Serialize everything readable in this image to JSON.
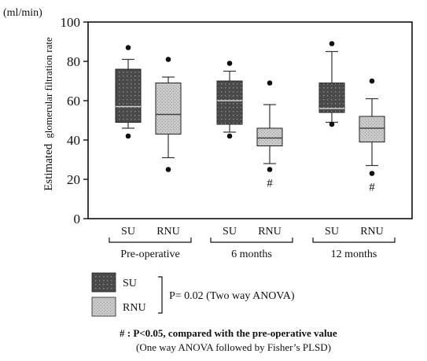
{
  "chart_data": {
    "type": "box",
    "y_unit": "(ml/min)",
    "ylabel_prefix": "Estimated",
    "ylabel_main": "glomerular filtration rate",
    "ylim": [
      0,
      100
    ],
    "yticks": [
      0,
      20,
      40,
      60,
      80,
      100
    ],
    "grid": false,
    "groups": [
      {
        "label": "Pre-operative",
        "categories": [
          "SU",
          "RNU"
        ]
      },
      {
        "label": "6 months",
        "categories": [
          "SU",
          "RNU"
        ]
      },
      {
        "label": "12 months",
        "categories": [
          "SU",
          "RNU"
        ]
      }
    ],
    "series": [
      {
        "name": "SU",
        "boxes": [
          {
            "whisker_low": 46,
            "q1": 49,
            "median": 57,
            "q3": 76,
            "whisker_high": 81,
            "outliers": [
              87,
              42
            ]
          },
          {
            "whisker_low": 44,
            "q1": 48,
            "median": 60,
            "q3": 70,
            "whisker_high": 75,
            "outliers": [
              79,
              42
            ]
          },
          {
            "whisker_low": 49,
            "q1": 54,
            "median": 56,
            "q3": 69,
            "whisker_high": 85,
            "outliers": [
              89,
              48
            ]
          }
        ]
      },
      {
        "name": "RNU",
        "boxes": [
          {
            "whisker_low": 31,
            "q1": 43,
            "median": 53,
            "q3": 69,
            "whisker_high": 72,
            "outliers": [
              81,
              25
            ]
          },
          {
            "whisker_low": 28,
            "q1": 37,
            "median": 41,
            "q3": 46,
            "whisker_high": 58,
            "outliers": [
              69,
              25
            ],
            "marker": "#"
          },
          {
            "whisker_low": 27,
            "q1": 39,
            "median": 46,
            "q3": 52,
            "whisker_high": 61,
            "outliers": [
              70,
              23
            ],
            "marker": "#"
          }
        ]
      }
    ],
    "legend": [
      {
        "name": "SU",
        "color": "#4a4a4a"
      },
      {
        "name": "RNU",
        "color": "#c4c4c4"
      }
    ],
    "legend_placement": "bottom-left"
  },
  "legend_note": "P= 0.02  (Two way ANOVA)",
  "footnote_line1": "# : P<0.05, compared with the pre-operative value",
  "footnote_line2": "(One way ANOVA followed by Fisher’s PLSD)",
  "colors": {
    "su_fill": "#4a4a4a",
    "rnu_fill": "#c4c4c4",
    "ink": "#111111"
  }
}
